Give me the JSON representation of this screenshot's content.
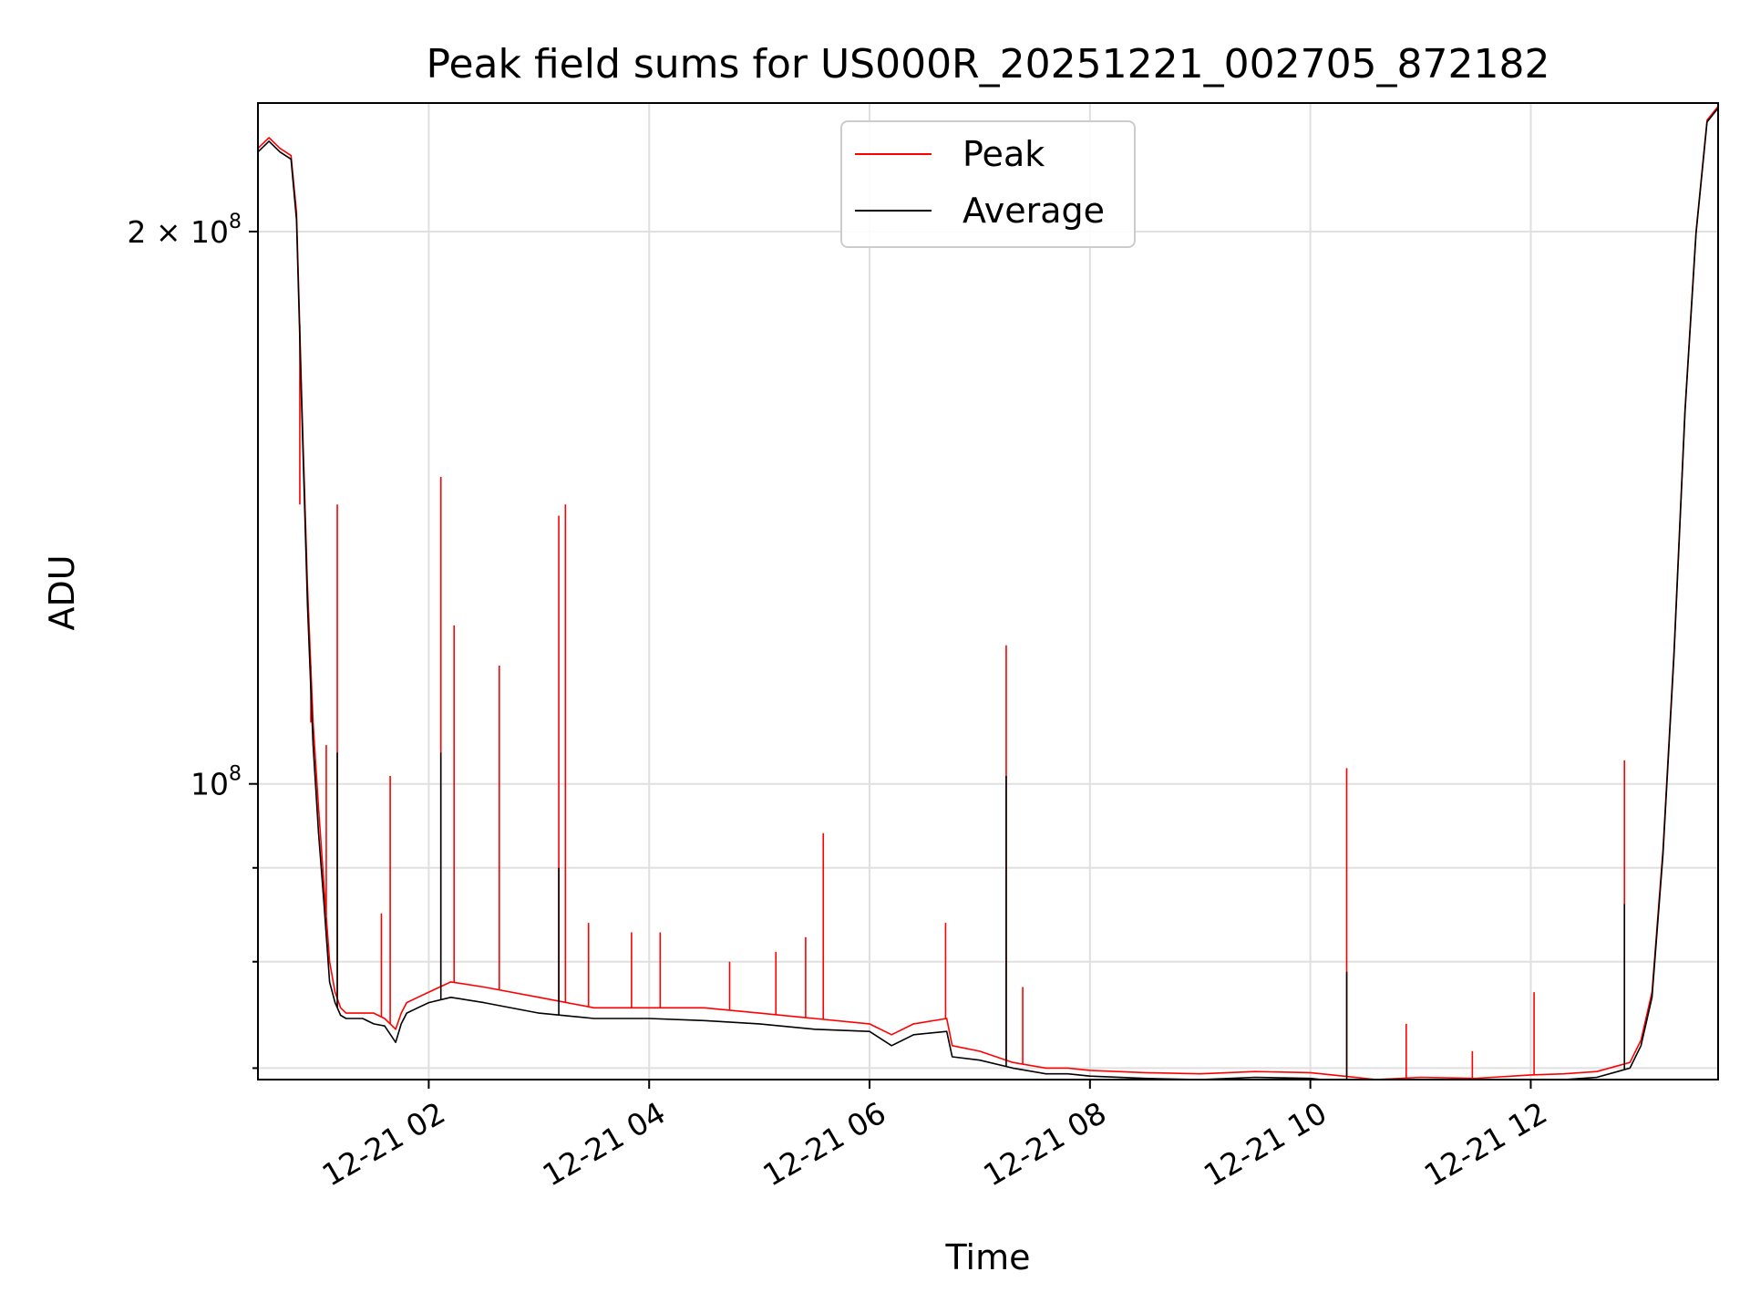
{
  "chart_data": {
    "type": "line",
    "title": "Peak field sums for US000R_20251221_002705_872182",
    "xlabel": "Time",
    "ylabel": "ADU",
    "yscale": "log",
    "ylim": [
      69000000,
      235000000
    ],
    "xlim_hours": [
      0.45,
      13.7
    ],
    "grid": true,
    "legend_position": "top-center",
    "x_ticks": [
      {
        "hour": 2,
        "label": "12-21 02"
      },
      {
        "hour": 4,
        "label": "12-21 04"
      },
      {
        "hour": 6,
        "label": "12-21 06"
      },
      {
        "hour": 8,
        "label": "12-21 08"
      },
      {
        "hour": 10,
        "label": "12-21 10"
      },
      {
        "hour": 12,
        "label": "12-21 12"
      }
    ],
    "y_major_ticks": [
      {
        "value": 100000000,
        "base": "10",
        "exp": "8",
        "coef": ""
      },
      {
        "value": 200000000,
        "base": "10",
        "exp": "8",
        "coef": "2 × "
      }
    ],
    "y_minor_ticks": [
      70000000,
      80000000,
      90000000
    ],
    "series": [
      {
        "name": "Peak",
        "color": "#ff0000",
        "x_hours": [
          0.45,
          0.55,
          0.65,
          0.75,
          0.8,
          0.85,
          0.9,
          0.95,
          1.0,
          1.05,
          1.1,
          1.15,
          1.2,
          1.25,
          1.3,
          1.4,
          1.5,
          1.6,
          1.7,
          1.75,
          1.8,
          1.9,
          2.0,
          2.2,
          2.5,
          3.0,
          3.5,
          4.0,
          4.5,
          5.0,
          5.5,
          6.0,
          6.2,
          6.4,
          6.7,
          6.75,
          7.0,
          7.3,
          7.6,
          7.8,
          8.0,
          8.5,
          9.0,
          9.5,
          10.0,
          10.3,
          10.6,
          11.0,
          11.5,
          12.0,
          12.3,
          12.6,
          12.9,
          13.0,
          13.1,
          13.2,
          13.3,
          13.4,
          13.5,
          13.6,
          13.7
        ],
        "values": [
          222000000,
          225000000,
          222000000,
          220000000,
          205000000,
          160000000,
          128000000,
          108000000,
          97000000,
          88000000,
          80000000,
          77000000,
          75500000,
          75000000,
          75000000,
          75000000,
          75000000,
          74500000,
          73500000,
          75000000,
          76000000,
          76500000,
          77000000,
          78000000,
          77500000,
          76500000,
          75500000,
          75500000,
          75500000,
          75000000,
          74500000,
          74000000,
          73000000,
          74000000,
          74500000,
          72000000,
          71500000,
          70500000,
          70000000,
          70000000,
          69800000,
          69600000,
          69500000,
          69700000,
          69600000,
          69300000,
          69000000,
          69200000,
          69100000,
          69400000,
          69500000,
          69700000,
          70500000,
          72500000,
          77000000,
          92000000,
          118000000,
          160000000,
          200000000,
          230000000,
          234000000
        ],
        "spikes": [
          {
            "hour": 0.83,
            "value": 142000000
          },
          {
            "hour": 0.93,
            "value": 108000000
          },
          {
            "hour": 1.07,
            "value": 105000000
          },
          {
            "hour": 1.17,
            "value": 142000000
          },
          {
            "hour": 1.57,
            "value": 85000000
          },
          {
            "hour": 1.65,
            "value": 101000000
          },
          {
            "hour": 2.11,
            "value": 147000000
          },
          {
            "hour": 2.23,
            "value": 122000000
          },
          {
            "hour": 2.64,
            "value": 116000000
          },
          {
            "hour": 3.18,
            "value": 140000000
          },
          {
            "hour": 3.24,
            "value": 142000000
          },
          {
            "hour": 3.45,
            "value": 84000000
          },
          {
            "hour": 3.84,
            "value": 83000000
          },
          {
            "hour": 4.1,
            "value": 83000000
          },
          {
            "hour": 4.73,
            "value": 80000000
          },
          {
            "hour": 5.15,
            "value": 81000000
          },
          {
            "hour": 5.42,
            "value": 82500000
          },
          {
            "hour": 5.58,
            "value": 94000000
          },
          {
            "hour": 6.69,
            "value": 84000000
          },
          {
            "hour": 7.24,
            "value": 119000000
          },
          {
            "hour": 7.39,
            "value": 77500000
          },
          {
            "hour": 10.33,
            "value": 102000000
          },
          {
            "hour": 10.87,
            "value": 74000000
          },
          {
            "hour": 11.47,
            "value": 71500000
          },
          {
            "hour": 12.03,
            "value": 77000000
          },
          {
            "hour": 12.85,
            "value": 103000000
          }
        ]
      },
      {
        "name": "Average",
        "color": "#000000",
        "x_hours": [
          0.45,
          0.55,
          0.65,
          0.75,
          0.8,
          0.85,
          0.9,
          0.95,
          1.0,
          1.05,
          1.1,
          1.15,
          1.2,
          1.25,
          1.3,
          1.4,
          1.5,
          1.6,
          1.7,
          1.75,
          1.8,
          1.9,
          2.0,
          2.2,
          2.5,
          3.0,
          3.5,
          4.0,
          4.5,
          5.0,
          5.5,
          6.0,
          6.2,
          6.4,
          6.7,
          6.75,
          7.0,
          7.3,
          7.6,
          7.8,
          8.0,
          8.5,
          9.0,
          9.5,
          10.0,
          10.3,
          10.6,
          11.0,
          11.5,
          12.0,
          12.3,
          12.6,
          12.9,
          13.0,
          13.1,
          13.2,
          13.3,
          13.4,
          13.5,
          13.6,
          13.7
        ],
        "values": [
          221000000,
          224000000,
          221000000,
          219000000,
          203000000,
          158000000,
          125000000,
          105000000,
          94000000,
          86000000,
          78000000,
          76000000,
          74800000,
          74500000,
          74500000,
          74500000,
          74000000,
          73800000,
          72300000,
          74000000,
          75000000,
          75500000,
          76000000,
          76500000,
          76000000,
          75000000,
          74500000,
          74500000,
          74300000,
          74000000,
          73500000,
          73300000,
          72000000,
          73000000,
          73300000,
          71000000,
          70700000,
          70000000,
          69500000,
          69500000,
          69300000,
          69100000,
          69000000,
          69200000,
          69100000,
          68800000,
          68500000,
          68700000,
          68600000,
          68900000,
          69000000,
          69200000,
          70000000,
          72000000,
          76500000,
          91500000,
          117500000,
          159500000,
          199500000,
          229500000,
          233500000
        ],
        "spikes": [
          {
            "hour": 1.17,
            "value": 104000000
          },
          {
            "hour": 2.11,
            "value": 104000000
          },
          {
            "hour": 3.18,
            "value": 90000000
          },
          {
            "hour": 7.24,
            "value": 101000000
          },
          {
            "hour": 10.33,
            "value": 79000000
          },
          {
            "hour": 12.85,
            "value": 86000000
          }
        ]
      }
    ]
  }
}
